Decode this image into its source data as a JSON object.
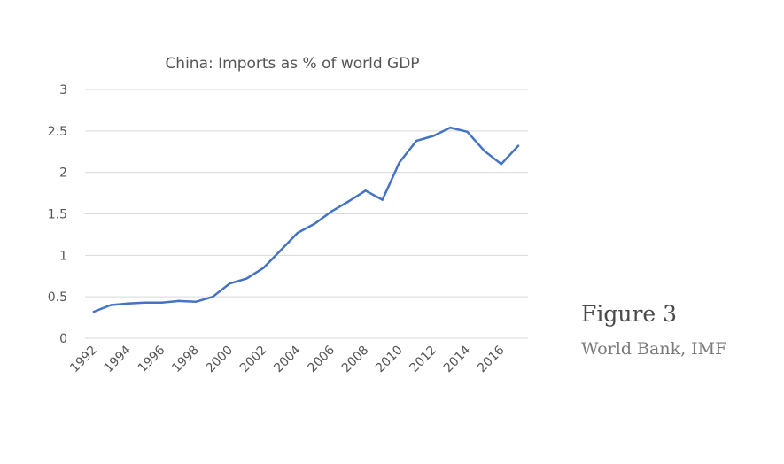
{
  "caption": {
    "figure_label": "Figure 3",
    "source_label": "World Bank, IMF"
  },
  "colors": {
    "series": "#4472c4"
  },
  "chart_data": {
    "type": "line",
    "title": "China: Imports as % of world GDP",
    "xlabel": "",
    "ylabel": "",
    "ylim": [
      0,
      3
    ],
    "yticks": [
      0,
      0.5,
      1,
      1.5,
      2,
      2.5,
      3
    ],
    "ytick_labels": [
      "0",
      "0.5",
      "1",
      "1.5",
      "2",
      "2.5",
      "3"
    ],
    "xtick_labels": [
      "1992",
      "1994",
      "1996",
      "1998",
      "2000",
      "2002",
      "2004",
      "2006",
      "2008",
      "2010",
      "2012",
      "2014",
      "2016"
    ],
    "grid": true,
    "legend": "none",
    "x": [
      1992,
      1993,
      1994,
      1995,
      1996,
      1997,
      1998,
      1999,
      2000,
      2001,
      2002,
      2003,
      2004,
      2005,
      2006,
      2007,
      2008,
      2009,
      2010,
      2011,
      2012,
      2013,
      2014,
      2015,
      2016,
      2017
    ],
    "series": [
      {
        "values": [
          0.32,
          0.4,
          0.42,
          0.43,
          0.43,
          0.45,
          0.44,
          0.5,
          0.66,
          0.72,
          0.85,
          1.06,
          1.27,
          1.38,
          1.53,
          1.65,
          1.78,
          1.67,
          2.12,
          2.38,
          2.44,
          2.54,
          2.49,
          2.26,
          2.1,
          2.32
        ]
      }
    ]
  }
}
